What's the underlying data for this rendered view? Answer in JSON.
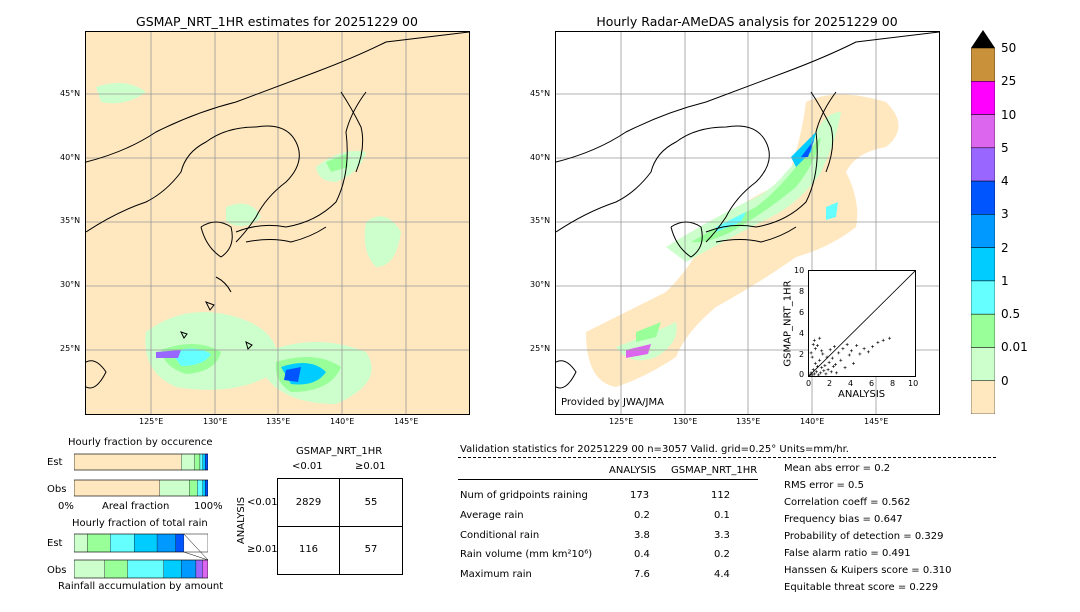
{
  "left_map": {
    "title": "GSMAP_NRT_1HR estimates for 20251229 00",
    "lat_ticks": [
      "45°N",
      "40°N",
      "35°N",
      "30°N",
      "25°N"
    ],
    "lon_ticks": [
      "125°E",
      "130°E",
      "135°E",
      "140°E",
      "145°E"
    ]
  },
  "right_map": {
    "title": "Hourly Radar-AMeDAS analysis for 20251229 00",
    "lat_ticks": [
      "45°N",
      "40°N",
      "35°N",
      "30°N",
      "25°N"
    ],
    "lon_ticks": [
      "125°E",
      "130°E",
      "135°E",
      "140°E",
      "145°E"
    ],
    "provider": "Provided by JWA/JMA"
  },
  "colorbar": {
    "labels": [
      "50",
      "25",
      "10",
      "5",
      "4",
      "3",
      "2",
      "1",
      "0.5",
      "0.01",
      "0"
    ],
    "colors": [
      "#c8913a",
      "#ff00ff",
      "#dd66ee",
      "#9966ff",
      "#0055ff",
      "#0099ff",
      "#00ccff",
      "#66ffff",
      "#99ff99",
      "#ccffcc",
      "#ffe8c0"
    ],
    "over_color": "#000000"
  },
  "scatter": {
    "xlabel": "ANALYSIS",
    "ylabel": "GSMAP_NRT_1HR",
    "ticks": [
      "0",
      "2",
      "4",
      "6",
      "8",
      "10"
    ]
  },
  "chart_data": {
    "type": "scatter",
    "xlabel": "ANALYSIS",
    "ylabel": "GSMAP_NRT_1HR",
    "xlim": [
      0,
      10
    ],
    "ylim": [
      0,
      10
    ],
    "points": [
      [
        0.1,
        0.1
      ],
      [
        0.2,
        0.3
      ],
      [
        0.3,
        0.1
      ],
      [
        0.4,
        0.6
      ],
      [
        0.5,
        0.2
      ],
      [
        0.6,
        1.2
      ],
      [
        0.7,
        0.4
      ],
      [
        0.8,
        0.9
      ],
      [
        0.9,
        0.1
      ],
      [
        1.0,
        1.5
      ],
      [
        1.1,
        0.3
      ],
      [
        1.2,
        0.8
      ],
      [
        1.3,
        2.1
      ],
      [
        1.4,
        0.5
      ],
      [
        1.5,
        1.0
      ],
      [
        1.6,
        0.2
      ],
      [
        1.7,
        1.8
      ],
      [
        1.8,
        0.6
      ],
      [
        1.9,
        1.3
      ],
      [
        2.0,
        2.5
      ],
      [
        2.1,
        0.4
      ],
      [
        2.2,
        1.7
      ],
      [
        2.3,
        0.9
      ],
      [
        2.4,
        2.8
      ],
      [
        2.5,
        1.1
      ],
      [
        2.6,
        0.3
      ],
      [
        2.8,
        2.2
      ],
      [
        3.0,
        1.5
      ],
      [
        3.2,
        2.6
      ],
      [
        3.4,
        0.8
      ],
      [
        3.6,
        3.0
      ],
      [
        3.8,
        2.0
      ],
      [
        4.0,
        2.4
      ],
      [
        4.2,
        1.2
      ],
      [
        4.5,
        2.9
      ],
      [
        4.8,
        2.1
      ],
      [
        5.2,
        2.6
      ],
      [
        5.6,
        2.3
      ],
      [
        6.0,
        2.8
      ],
      [
        6.5,
        3.2
      ],
      [
        7.0,
        3.4
      ],
      [
        7.6,
        3.6
      ],
      [
        0.2,
        2.2
      ],
      [
        0.4,
        3.0
      ],
      [
        0.6,
        2.6
      ],
      [
        0.3,
        1.8
      ],
      [
        0.5,
        3.4
      ],
      [
        0.8,
        2.9
      ],
      [
        1.0,
        3.6
      ],
      [
        1.2,
        2.4
      ]
    ],
    "diagonal": true
  },
  "fraction_occurrence": {
    "title": "Hourly fraction by occurence",
    "row_est": "Est",
    "row_obs": "Obs",
    "axis_left": "0%",
    "axis_mid": "Areal fraction",
    "axis_right": "100%",
    "est_segments": [
      0.8,
      0.1,
      0.04,
      0.02,
      0.02,
      0.02
    ],
    "obs_segments": [
      0.64,
      0.22,
      0.06,
      0.04,
      0.02,
      0.02
    ],
    "segment_colors": [
      "#ffe8c0",
      "#ccffcc",
      "#99ff99",
      "#66ffff",
      "#00ccff",
      "#0055ff"
    ]
  },
  "fraction_amount": {
    "title": "Hourly fraction of total rain",
    "row_est": "Est",
    "row_obs": "Obs",
    "axis_label": "Rainfall accumulation by amount",
    "est_segments": [
      0.1,
      0.17,
      0.18,
      0.17,
      0.14,
      0.06
    ],
    "obs_segments": [
      0.23,
      0.17,
      0.27,
      0.13,
      0.11,
      0.05,
      0.04
    ],
    "est_colors": [
      "#ccffcc",
      "#99ff99",
      "#66ffff",
      "#00ccff",
      "#0099ff",
      "#0055ff"
    ],
    "obs_colors": [
      "#ccffcc",
      "#99ff99",
      "#66ffff",
      "#00ccff",
      "#0099ff",
      "#9966ff",
      "#dd66ee"
    ]
  },
  "contingency": {
    "title": "GSMAP_NRT_1HR",
    "col1": "<0.01",
    "col2": "≥0.01",
    "row_label": "ANALYSIS",
    "row1": "<0.01",
    "row2": "≥0.01",
    "cells": [
      "2829",
      "55",
      "116",
      "57"
    ]
  },
  "stats": {
    "header": "Validation statistics for 20251229 00  n=3057 Valid. grid=0.25° Units=mm/hr.",
    "col_analysis": "ANALYSIS",
    "col_gsmap": "GSMAP_NRT_1HR",
    "rows": [
      {
        "label": "Num of gridpoints raining",
        "a": "173",
        "g": "112"
      },
      {
        "label": "Average rain",
        "a": "0.2",
        "g": "0.1"
      },
      {
        "label": "Conditional rain",
        "a": "3.8",
        "g": "3.3"
      },
      {
        "label": "Rain volume (mm km²10⁶)",
        "a": "0.4",
        "g": "0.2"
      },
      {
        "label": "Maximum rain",
        "a": "7.6",
        "g": "4.4"
      }
    ],
    "scores": [
      "Mean abs error =    0.2",
      "RMS error =    0.5",
      "Correlation coeff =  0.562",
      "Frequency bias =  0.647",
      "Probability of detection =  0.329",
      "False alarm ratio =  0.491",
      "Hanssen & Kuipers score =  0.310",
      "Equitable threat score =  0.229"
    ]
  }
}
